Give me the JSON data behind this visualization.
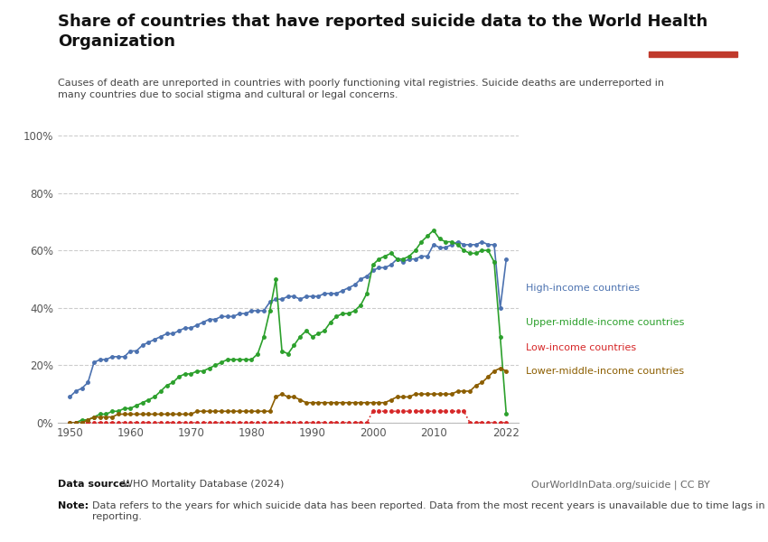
{
  "title": "Share of countries that have reported suicide data to the World Health\nOrganization",
  "subtitle": "Causes of death are unreported in countries with poorly functioning vital registries. Suicide deaths are underreported in\nmany countries due to social stigma and cultural or legal concerns.",
  "datasource": "Data source: WHO Mortality Database (2024)",
  "credit": "OurWorldInData.org/suicide | CC BY",
  "note": "Note: Data refers to the years for which suicide data has been reported. Data from the most recent years is unavailable due to time lags in\nreporting.",
  "background_color": "#ffffff",
  "plot_bg_color": "#ffffff",
  "grid_color": "#cccccc",
  "series": {
    "high_income": {
      "label": "High-income countries",
      "color": "#4c72b0",
      "marker": "o",
      "markersize": 2.5,
      "linestyle": "solid",
      "years": [
        1950,
        1951,
        1952,
        1953,
        1954,
        1955,
        1956,
        1957,
        1958,
        1959,
        1960,
        1961,
        1962,
        1963,
        1964,
        1965,
        1966,
        1967,
        1968,
        1969,
        1970,
        1971,
        1972,
        1973,
        1974,
        1975,
        1976,
        1977,
        1978,
        1979,
        1980,
        1981,
        1982,
        1983,
        1984,
        1985,
        1986,
        1987,
        1988,
        1989,
        1990,
        1991,
        1992,
        1993,
        1994,
        1995,
        1996,
        1997,
        1998,
        1999,
        2000,
        2001,
        2002,
        2003,
        2004,
        2005,
        2006,
        2007,
        2008,
        2009,
        2010,
        2011,
        2012,
        2013,
        2014,
        2015,
        2016,
        2017,
        2018,
        2019,
        2020,
        2021,
        2022
      ],
      "values": [
        9,
        11,
        12,
        14,
        21,
        22,
        22,
        23,
        23,
        23,
        25,
        25,
        27,
        28,
        29,
        30,
        31,
        31,
        32,
        33,
        33,
        34,
        35,
        36,
        36,
        37,
        37,
        37,
        38,
        38,
        39,
        39,
        39,
        42,
        43,
        43,
        44,
        44,
        43,
        44,
        44,
        44,
        45,
        45,
        45,
        46,
        47,
        48,
        50,
        51,
        53,
        54,
        54,
        55,
        57,
        56,
        57,
        57,
        58,
        58,
        62,
        61,
        61,
        62,
        63,
        62,
        62,
        62,
        63,
        62,
        62,
        40,
        57
      ]
    },
    "upper_middle": {
      "label": "Upper-middle-income countries",
      "color": "#2ca02c",
      "marker": "o",
      "markersize": 2.5,
      "linestyle": "solid",
      "years": [
        1950,
        1951,
        1952,
        1953,
        1954,
        1955,
        1956,
        1957,
        1958,
        1959,
        1960,
        1961,
        1962,
        1963,
        1964,
        1965,
        1966,
        1967,
        1968,
        1969,
        1970,
        1971,
        1972,
        1973,
        1974,
        1975,
        1976,
        1977,
        1978,
        1979,
        1980,
        1981,
        1982,
        1983,
        1984,
        1985,
        1986,
        1987,
        1988,
        1989,
        1990,
        1991,
        1992,
        1993,
        1994,
        1995,
        1996,
        1997,
        1998,
        1999,
        2000,
        2001,
        2002,
        2003,
        2004,
        2005,
        2006,
        2007,
        2008,
        2009,
        2010,
        2011,
        2012,
        2013,
        2014,
        2015,
        2016,
        2017,
        2018,
        2019,
        2020,
        2021,
        2022
      ],
      "values": [
        0,
        0,
        1,
        1,
        2,
        3,
        3,
        4,
        4,
        5,
        5,
        6,
        7,
        8,
        9,
        11,
        13,
        14,
        16,
        17,
        17,
        18,
        18,
        19,
        20,
        21,
        22,
        22,
        22,
        22,
        22,
        24,
        30,
        39,
        50,
        25,
        24,
        27,
        30,
        32,
        30,
        31,
        32,
        35,
        37,
        38,
        38,
        39,
        41,
        45,
        55,
        57,
        58,
        59,
        57,
        57,
        58,
        60,
        63,
        65,
        67,
        64,
        63,
        63,
        62,
        60,
        59,
        59,
        60,
        60,
        56,
        30,
        3
      ]
    },
    "low_income": {
      "label": "Low-income countries",
      "color": "#d62728",
      "marker": "o",
      "markersize": 2.5,
      "linestyle": "dotted",
      "years": [
        1950,
        1951,
        1952,
        1953,
        1954,
        1955,
        1956,
        1957,
        1958,
        1959,
        1960,
        1961,
        1962,
        1963,
        1964,
        1965,
        1966,
        1967,
        1968,
        1969,
        1970,
        1971,
        1972,
        1973,
        1974,
        1975,
        1976,
        1977,
        1978,
        1979,
        1980,
        1981,
        1982,
        1983,
        1984,
        1985,
        1986,
        1987,
        1988,
        1989,
        1990,
        1991,
        1992,
        1993,
        1994,
        1995,
        1996,
        1997,
        1998,
        1999,
        2000,
        2001,
        2002,
        2003,
        2004,
        2005,
        2006,
        2007,
        2008,
        2009,
        2010,
        2011,
        2012,
        2013,
        2014,
        2015,
        2016,
        2017,
        2018,
        2019,
        2020,
        2021,
        2022
      ],
      "values": [
        0,
        0,
        0,
        0,
        0,
        0,
        0,
        0,
        0,
        0,
        0,
        0,
        0,
        0,
        0,
        0,
        0,
        0,
        0,
        0,
        0,
        0,
        0,
        0,
        0,
        0,
        0,
        0,
        0,
        0,
        0,
        0,
        0,
        0,
        0,
        0,
        0,
        0,
        0,
        0,
        0,
        0,
        0,
        0,
        0,
        0,
        0,
        0,
        0,
        0,
        4,
        4,
        4,
        4,
        4,
        4,
        4,
        4,
        4,
        4,
        4,
        4,
        4,
        4,
        4,
        4,
        0,
        0,
        0,
        0,
        0,
        0,
        0
      ]
    },
    "lower_middle": {
      "label": "Lower-middle-income countries",
      "color": "#8c5e00",
      "marker": "o",
      "markersize": 2.5,
      "linestyle": "solid",
      "years": [
        1950,
        1951,
        1952,
        1953,
        1954,
        1955,
        1956,
        1957,
        1958,
        1959,
        1960,
        1961,
        1962,
        1963,
        1964,
        1965,
        1966,
        1967,
        1968,
        1969,
        1970,
        1971,
        1972,
        1973,
        1974,
        1975,
        1976,
        1977,
        1978,
        1979,
        1980,
        1981,
        1982,
        1983,
        1984,
        1985,
        1986,
        1987,
        1988,
        1989,
        1990,
        1991,
        1992,
        1993,
        1994,
        1995,
        1996,
        1997,
        1998,
        1999,
        2000,
        2001,
        2002,
        2003,
        2004,
        2005,
        2006,
        2007,
        2008,
        2009,
        2010,
        2011,
        2012,
        2013,
        2014,
        2015,
        2016,
        2017,
        2018,
        2019,
        2020,
        2021,
        2022
      ],
      "values": [
        0,
        0,
        0,
        1,
        2,
        2,
        2,
        2,
        3,
        3,
        3,
        3,
        3,
        3,
        3,
        3,
        3,
        3,
        3,
        3,
        3,
        4,
        4,
        4,
        4,
        4,
        4,
        4,
        4,
        4,
        4,
        4,
        4,
        4,
        9,
        10,
        9,
        9,
        8,
        7,
        7,
        7,
        7,
        7,
        7,
        7,
        7,
        7,
        7,
        7,
        7,
        7,
        7,
        8,
        9,
        9,
        9,
        10,
        10,
        10,
        10,
        10,
        10,
        10,
        11,
        11,
        11,
        13,
        14,
        16,
        18,
        19,
        18
      ]
    }
  },
  "xlim": [
    1948,
    2024
  ],
  "ylim": [
    0,
    100
  ],
  "yticks": [
    0,
    20,
    40,
    60,
    80,
    100
  ],
  "ytick_labels": [
    "0%",
    "20%",
    "40%",
    "60%",
    "80%",
    "100%"
  ],
  "xticks": [
    1950,
    1960,
    1970,
    1980,
    1990,
    2000,
    2010,
    2022
  ],
  "legend_order": [
    "high_income",
    "upper_middle",
    "low_income",
    "lower_middle"
  ],
  "logo_bg": "#1a3a5c",
  "logo_red": "#c0392b"
}
